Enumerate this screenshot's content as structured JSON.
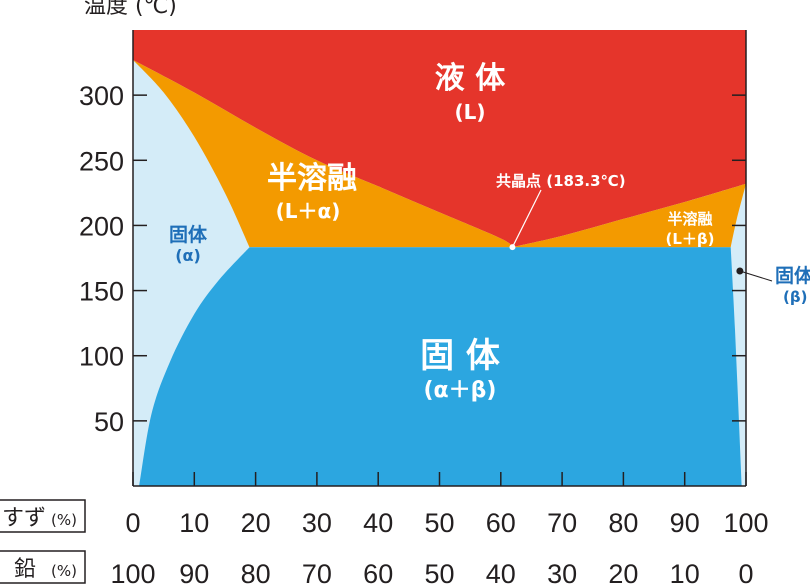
{
  "chart_data": {
    "type": "area",
    "title": "",
    "ylabel": "温度 (℃)",
    "ylim": [
      0,
      350
    ],
    "xlim": [
      0,
      100
    ],
    "y_ticks": [
      50,
      100,
      150,
      200,
      250,
      300
    ],
    "x_rows": [
      {
        "label": "すず",
        "unit": "(%)",
        "ticks": [
          "0",
          "10",
          "20",
          "30",
          "40",
          "50",
          "60",
          "70",
          "80",
          "90",
          "100"
        ]
      },
      {
        "label": "鉛",
        "unit": "(%)",
        "ticks": [
          "100",
          "90",
          "80",
          "70",
          "60",
          "50",
          "40",
          "30",
          "20",
          "10",
          "0"
        ]
      }
    ],
    "colors": {
      "liquid": "#e5352b",
      "semi_molten": "#f39a00",
      "solid_mix": "#2ca6e0",
      "solid_single": "#d4ecf8",
      "label_blue": "#1f6fb8"
    },
    "boundaries": {
      "liquidus_left": [
        [
          0,
          327
        ],
        [
          10,
          302
        ],
        [
          20,
          275
        ],
        [
          30,
          250
        ],
        [
          40,
          230
        ],
        [
          50,
          210
        ],
        [
          60,
          190
        ],
        [
          61.9,
          183.3
        ]
      ],
      "liquidus_right": [
        [
          61.9,
          183.3
        ],
        [
          70,
          192
        ],
        [
          80,
          205
        ],
        [
          90,
          218
        ],
        [
          100,
          232
        ]
      ],
      "solidus_left": [
        [
          0,
          327
        ],
        [
          5,
          302
        ],
        [
          10,
          268
        ],
        [
          15,
          225
        ],
        [
          19,
          183.3
        ]
      ],
      "solvus_left": [
        [
          19,
          183.3
        ],
        [
          14,
          158
        ],
        [
          10,
          132
        ],
        [
          6,
          95
        ],
        [
          3,
          55
        ],
        [
          1,
          0
        ]
      ],
      "solidus_right": [
        [
          97.5,
          183.3
        ],
        [
          98.5,
          205
        ],
        [
          100,
          232
        ]
      ],
      "solvus_right": [
        [
          97.5,
          183.3
        ],
        [
          98.2,
          120
        ],
        [
          99.3,
          0
        ]
      ],
      "eutectic_line": 183.3
    },
    "eutectic_point": {
      "x": 61.9,
      "y": 183.3,
      "label": "共晶点 (183.3℃)"
    },
    "regions": [
      {
        "name": "液 体",
        "sub": "(L)"
      },
      {
        "name": "半溶融",
        "sub": "(L＋α)"
      },
      {
        "name": "半溶融",
        "sub": "(L＋β)"
      },
      {
        "name": "固体",
        "sub": "(α)"
      },
      {
        "name": "固 体",
        "sub": "(α＋β)"
      },
      {
        "name": "固体",
        "sub": "(β)"
      }
    ]
  }
}
